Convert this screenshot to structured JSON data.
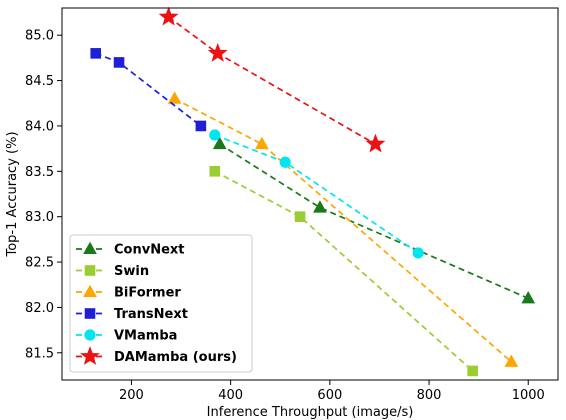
{
  "chart_data": {
    "type": "line",
    "xlabel": "Inference Throughput (image/s)",
    "ylabel": "Top-1 Accuracy (%)",
    "xlim": [
      60,
      1060
    ],
    "ylim": [
      81.2,
      85.3
    ],
    "xticks": [
      200,
      400,
      600,
      800,
      1000
    ],
    "yticks": [
      81.5,
      82.0,
      82.5,
      83.0,
      83.5,
      84.0,
      84.5,
      85.0
    ],
    "grid": false,
    "legend_position": "lower-left",
    "series": [
      {
        "name": "ConvNext",
        "color": "#1a7a1a",
        "marker": "triangle",
        "x": [
          378,
          580,
          1000
        ],
        "y": [
          83.8,
          83.1,
          82.1
        ]
      },
      {
        "name": "Swin",
        "color": "#9acd32",
        "marker": "square",
        "x": [
          368,
          540,
          888
        ],
        "y": [
          83.5,
          83.0,
          81.3
        ]
      },
      {
        "name": "BiFormer",
        "color": "#ffa500",
        "marker": "triangle",
        "x": [
          287,
          463,
          966
        ],
        "y": [
          84.3,
          83.8,
          81.4
        ]
      },
      {
        "name": "TransNext",
        "color": "#1f1fd6",
        "marker": "square",
        "x": [
          128,
          175,
          340
        ],
        "y": [
          84.8,
          84.7,
          84.0
        ]
      },
      {
        "name": "VMamba",
        "color": "#00e5ee",
        "marker": "circle",
        "x": [
          368,
          510,
          778
        ],
        "y": [
          83.9,
          83.6,
          82.6
        ]
      },
      {
        "name": "DAMamba (ours)",
        "color": "#ee1111",
        "marker": "star",
        "x": [
          275,
          374,
          692
        ],
        "y": [
          85.2,
          84.8,
          83.8
        ]
      }
    ]
  }
}
